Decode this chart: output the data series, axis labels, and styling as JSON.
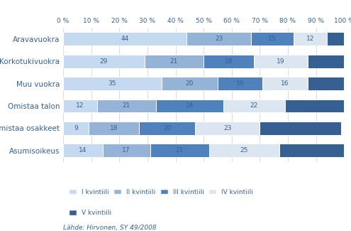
{
  "categories": [
    "Aravavuokra",
    "Korkotukivuokra",
    "Muu vuokra",
    "Omistaa talon",
    "Omistaa osakkeet",
    "Asumisoikeus"
  ],
  "quintiles": [
    "I kvintiili",
    "II kvintiili",
    "III kvintiili",
    "IV kvintiili",
    "V kvintiili"
  ],
  "values": [
    [
      44,
      23,
      15,
      12,
      6
    ],
    [
      29,
      21,
      18,
      19,
      13
    ],
    [
      35,
      20,
      16,
      16,
      14
    ],
    [
      12,
      21,
      24,
      22,
      21
    ],
    [
      9,
      18,
      20,
      23,
      29
    ],
    [
      14,
      17,
      21,
      25,
      24
    ]
  ],
  "colors": [
    "#c5d9f1",
    "#95b3d7",
    "#4f81bd",
    "#dce6f1",
    "#366092"
  ],
  "bg_color": "#ffffff",
  "text_color": "#366092",
  "source_text": "Lähde: Hirvonen, SY 49/2008",
  "bar_height": 0.6
}
